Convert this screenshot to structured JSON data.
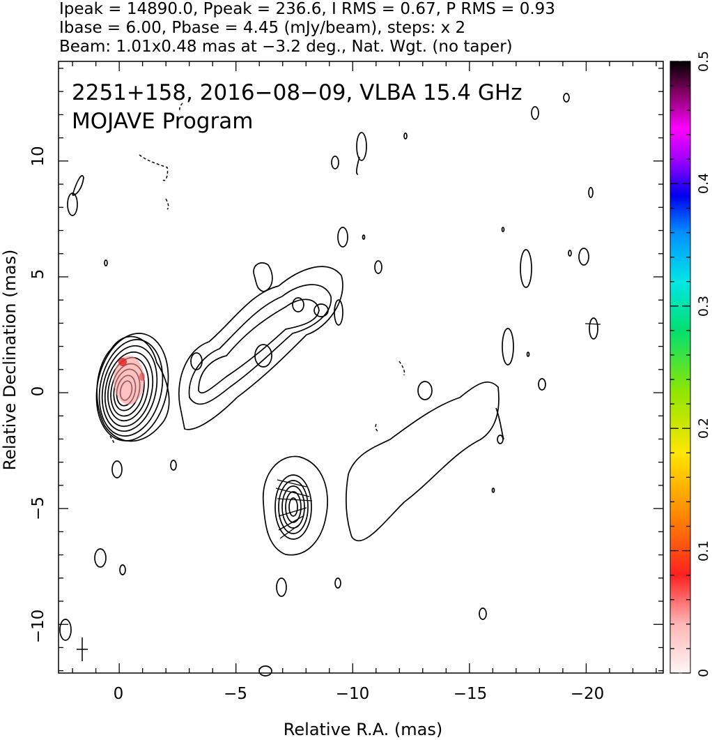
{
  "header": {
    "line1": "Ipeak = 14890.0, Ppeak = 236.6, I RMS = 0.67, P RMS = 0.93",
    "line2": "Ibase = 6.00, Pbase = 4.45 (mJy/beam), steps: x 2",
    "line3": "Beam: 1.01x0.48 mas at −3.2 deg., Nat. Wgt. (no taper)"
  },
  "chart_data": {
    "type": "contour",
    "annotation_line1": "2251+158, 2016−08−09, VLBA 15.4 GHz",
    "annotation_line2": "MOJAVE Program",
    "xlabel": "Relative R.A. (mas)",
    "ylabel": "Relative Declination (mas)",
    "xlim": [
      2.6,
      -23.3
    ],
    "ylim": [
      -12.1,
      14.3
    ],
    "x_ticks": [
      0,
      -5,
      -10,
      -15,
      -20
    ],
    "x_tick_labels": [
      "0",
      "−5",
      "−10",
      "−15",
      "−20"
    ],
    "y_ticks": [
      10,
      5,
      0,
      -5,
      -10
    ],
    "y_tick_labels": [
      "10",
      "5",
      "0",
      "−5",
      "−10"
    ],
    "colorbar": {
      "range": [
        0,
        0.5
      ],
      "ticks": [
        0,
        0.1,
        0.2,
        0.3,
        0.4,
        0.5
      ],
      "tick_labels": [
        "0",
        "0.1",
        "0.2",
        "0.3",
        "0.4",
        "0.5"
      ]
    },
    "core": {
      "x": -0.3,
      "y": 0.1
    },
    "knot": {
      "x": -7.4,
      "y": -4.9
    },
    "beam": {
      "x": 1.6,
      "y": -11.1
    }
  }
}
